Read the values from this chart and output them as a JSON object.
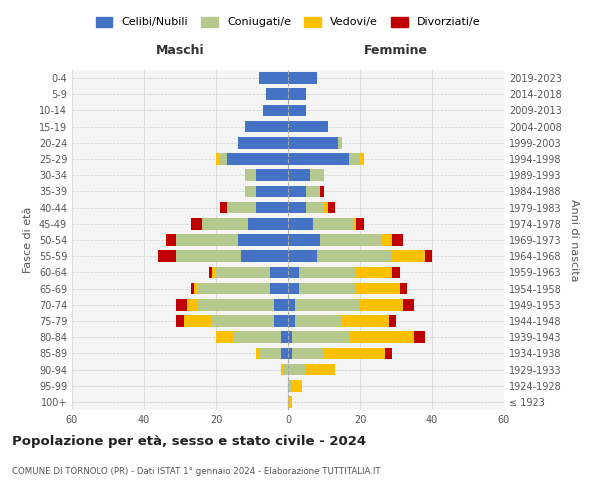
{
  "age_groups": [
    "100+",
    "95-99",
    "90-94",
    "85-89",
    "80-84",
    "75-79",
    "70-74",
    "65-69",
    "60-64",
    "55-59",
    "50-54",
    "45-49",
    "40-44",
    "35-39",
    "30-34",
    "25-29",
    "20-24",
    "15-19",
    "10-14",
    "5-9",
    "0-4"
  ],
  "birth_years": [
    "≤ 1923",
    "1924-1928",
    "1929-1933",
    "1934-1938",
    "1939-1943",
    "1944-1948",
    "1949-1953",
    "1954-1958",
    "1959-1963",
    "1964-1968",
    "1969-1973",
    "1974-1978",
    "1979-1983",
    "1984-1988",
    "1989-1993",
    "1994-1998",
    "1999-2003",
    "2004-2008",
    "2009-2013",
    "2014-2018",
    "2019-2023"
  ],
  "male": {
    "celibi": [
      0,
      0,
      0,
      2,
      2,
      4,
      4,
      5,
      5,
      13,
      14,
      11,
      9,
      9,
      9,
      17,
      14,
      12,
      7,
      6,
      8
    ],
    "coniugati": [
      0,
      0,
      1,
      6,
      13,
      17,
      21,
      20,
      15,
      18,
      17,
      13,
      8,
      3,
      3,
      2,
      0,
      0,
      0,
      0,
      0
    ],
    "vedovi": [
      0,
      0,
      1,
      1,
      5,
      8,
      3,
      1,
      1,
      0,
      0,
      0,
      0,
      0,
      0,
      1,
      0,
      0,
      0,
      0,
      0
    ],
    "divorziati": [
      0,
      0,
      0,
      0,
      0,
      2,
      3,
      1,
      1,
      5,
      3,
      3,
      2,
      0,
      0,
      0,
      0,
      0,
      0,
      0,
      0
    ]
  },
  "female": {
    "nubili": [
      0,
      0,
      0,
      1,
      1,
      2,
      2,
      3,
      3,
      8,
      9,
      7,
      5,
      5,
      6,
      17,
      14,
      11,
      5,
      5,
      8
    ],
    "coniugate": [
      0,
      1,
      5,
      9,
      16,
      13,
      18,
      16,
      16,
      21,
      17,
      11,
      5,
      4,
      4,
      3,
      1,
      0,
      0,
      0,
      0
    ],
    "vedove": [
      1,
      3,
      8,
      17,
      18,
      13,
      12,
      12,
      10,
      9,
      3,
      1,
      1,
      0,
      0,
      1,
      0,
      0,
      0,
      0,
      0
    ],
    "divorziate": [
      0,
      0,
      0,
      2,
      3,
      2,
      3,
      2,
      2,
      2,
      3,
      2,
      2,
      1,
      0,
      0,
      0,
      0,
      0,
      0,
      0
    ]
  },
  "colors": {
    "celibi_nubili": "#4472c4",
    "coniugati": "#b5c98e",
    "vedovi": "#ffc000",
    "divorziati": "#c00000"
  },
  "title": "Popolazione per età, sesso e stato civile - 2024",
  "subtitle": "COMUNE DI TORNOLO (PR) - Dati ISTAT 1° gennaio 2024 - Elaborazione TUTTITALIA.IT",
  "xlabel_left": "Maschi",
  "xlabel_right": "Femmine",
  "ylabel_left": "Fasce di età",
  "ylabel_right": "Anni di nascita",
  "xlim": 60,
  "legend_labels": [
    "Celibi/Nubili",
    "Coniugati/e",
    "Vedovi/e",
    "Divorziati/e"
  ],
  "bg_color": "#ffffff",
  "plot_bg_color": "#f5f5f5",
  "grid_color": "#cccccc"
}
